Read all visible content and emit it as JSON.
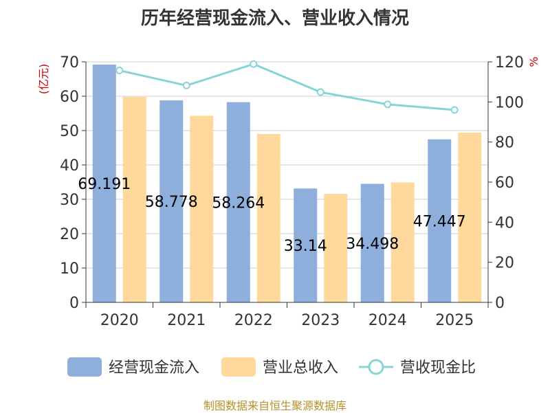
{
  "title": "历年经营现金流入、营业收入情况",
  "source": "制图数据来自恒生聚源数据库",
  "colors": {
    "cash_in": "#8eaedb",
    "revenue": "#fed99b",
    "ratio": "#86d4d6"
  },
  "chart_data": {
    "type": "bar",
    "categories": [
      "2020",
      "2021",
      "2022",
      "2023",
      "2024",
      "2025"
    ],
    "series": [
      {
        "name": "经营现金流入",
        "type": "bar",
        "axis": "left",
        "values": [
          69.191,
          58.778,
          58.264,
          33.14,
          34.498,
          47.447
        ]
      },
      {
        "name": "营业总收入",
        "type": "bar",
        "axis": "left",
        "values": [
          59.8,
          54.3,
          49.0,
          31.6,
          34.9,
          49.4
        ]
      },
      {
        "name": "营收现金比",
        "type": "line",
        "axis": "right",
        "values": [
          115.7,
          108.2,
          118.9,
          104.9,
          98.8,
          96.0
        ]
      }
    ],
    "data_labels": [
      "69.191",
      "58.778",
      "58.264",
      "33.14",
      "34.498",
      "47.447"
    ],
    "left_axis": {
      "label": "(亿元)",
      "min": 0,
      "max": 70,
      "ticks": [
        "0",
        "10",
        "20",
        "30",
        "40",
        "50",
        "60",
        "70"
      ]
    },
    "right_axis": {
      "label": "%",
      "min": 0,
      "max": 120,
      "ticks": [
        "0",
        "20",
        "40",
        "60",
        "80",
        "100",
        "120"
      ]
    },
    "grid": true,
    "legend_position": "bottom"
  }
}
